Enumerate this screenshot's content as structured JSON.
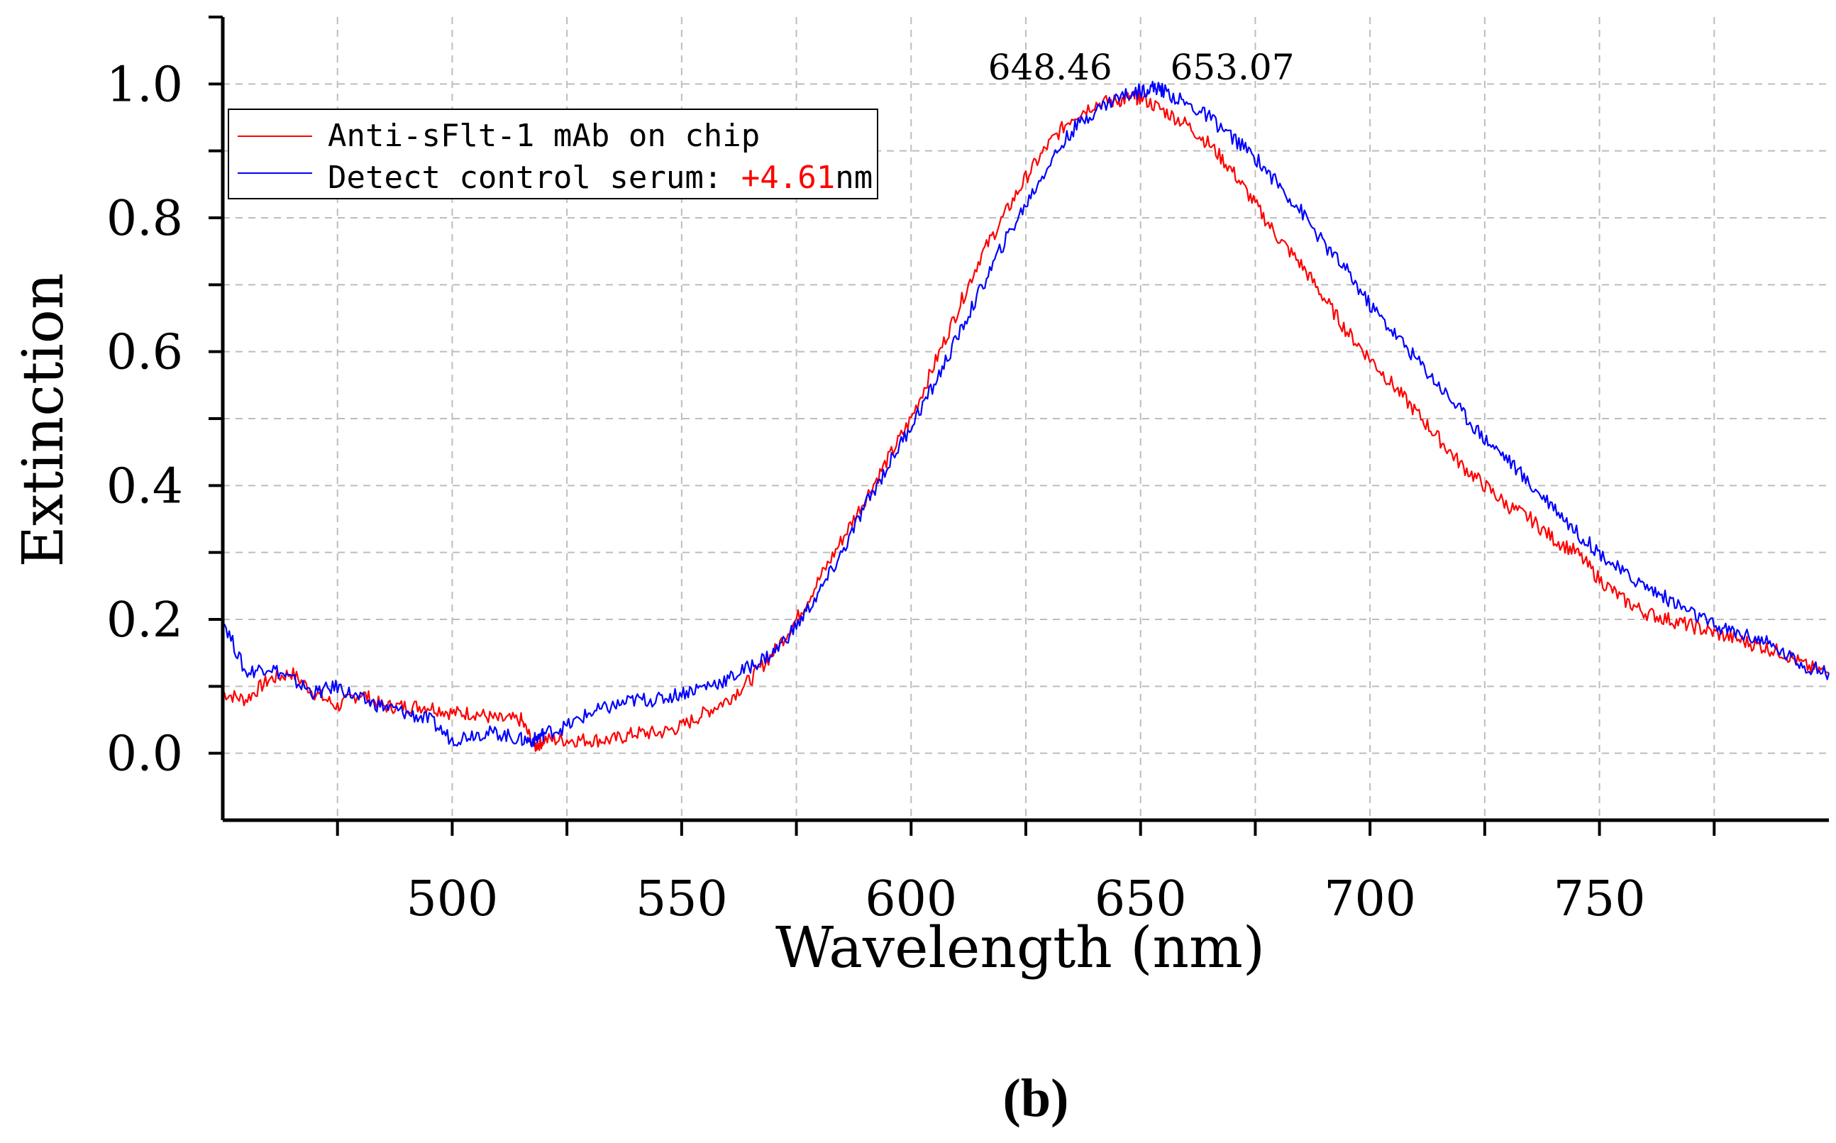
{
  "chart_data": {
    "type": "line",
    "title": "",
    "xlabel": "Wavelength (nm)",
    "ylabel": "Extinction",
    "xlim": [
      450,
      800
    ],
    "ylim": [
      -0.1,
      1.1
    ],
    "xticks": [
      500,
      550,
      600,
      650,
      700,
      750
    ],
    "xtick_labels": [
      "500",
      "550",
      "600",
      "650",
      "700",
      "750"
    ],
    "yticks": [
      0.0,
      0.2,
      0.4,
      0.6,
      0.8,
      1.0
    ],
    "ytick_labels": [
      "0.0",
      "0.2",
      "0.4",
      "0.6",
      "0.8",
      "1.0"
    ],
    "grid": true,
    "legend_position": "top-left",
    "series": [
      {
        "name": "Anti-sFlt-1 mAb on chip",
        "color": "#ff0000",
        "x": [
          450,
          455,
          460,
          465,
          470,
          475,
          480,
          485,
          490,
          495,
          500,
          505,
          510,
          515,
          518,
          520,
          525,
          530,
          535,
          540,
          545,
          550,
          555,
          560,
          565,
          570,
          575,
          580,
          585,
          590,
          595,
          600,
          605,
          610,
          615,
          620,
          625,
          630,
          635,
          640,
          645,
          648.46,
          650,
          655,
          660,
          665,
          670,
          675,
          680,
          685,
          690,
          695,
          700,
          705,
          710,
          715,
          720,
          725,
          730,
          735,
          740,
          745,
          750,
          755,
          760,
          765,
          770,
          775,
          780,
          785,
          790,
          795,
          800
        ],
        "y": [
          0.09,
          0.08,
          0.11,
          0.12,
          0.09,
          0.07,
          0.09,
          0.07,
          0.07,
          0.07,
          0.06,
          0.06,
          0.05,
          0.05,
          0.01,
          0.02,
          0.02,
          0.02,
          0.02,
          0.03,
          0.03,
          0.04,
          0.06,
          0.08,
          0.11,
          0.15,
          0.2,
          0.26,
          0.32,
          0.38,
          0.44,
          0.5,
          0.58,
          0.66,
          0.74,
          0.8,
          0.86,
          0.91,
          0.95,
          0.97,
          0.975,
          0.98,
          0.98,
          0.96,
          0.94,
          0.91,
          0.87,
          0.82,
          0.77,
          0.73,
          0.68,
          0.63,
          0.59,
          0.55,
          0.51,
          0.47,
          0.43,
          0.4,
          0.37,
          0.35,
          0.32,
          0.3,
          0.26,
          0.23,
          0.21,
          0.2,
          0.19,
          0.18,
          0.17,
          0.16,
          0.15,
          0.13,
          0.12
        ]
      },
      {
        "name": "Detect control serum: ",
        "shift_label": "+4.61",
        "shift_unit": "nm",
        "shift_color": "#ff0000",
        "color": "#0000ff",
        "x": [
          450,
          455,
          460,
          465,
          470,
          475,
          480,
          485,
          490,
          495,
          500,
          505,
          510,
          515,
          518,
          520,
          525,
          530,
          535,
          540,
          545,
          550,
          555,
          560,
          565,
          570,
          575,
          580,
          585,
          590,
          595,
          600,
          605,
          610,
          615,
          620,
          625,
          630,
          635,
          640,
          645,
          650,
          653.07,
          655,
          660,
          665,
          670,
          675,
          680,
          685,
          690,
          695,
          700,
          705,
          710,
          715,
          720,
          725,
          730,
          735,
          740,
          745,
          750,
          755,
          760,
          765,
          770,
          775,
          780,
          785,
          790,
          795,
          800
        ],
        "y": [
          0.2,
          0.12,
          0.13,
          0.11,
          0.09,
          0.1,
          0.08,
          0.07,
          0.06,
          0.05,
          0.02,
          0.03,
          0.03,
          0.02,
          0.02,
          0.03,
          0.04,
          0.06,
          0.07,
          0.08,
          0.08,
          0.09,
          0.1,
          0.11,
          0.13,
          0.15,
          0.19,
          0.24,
          0.3,
          0.37,
          0.43,
          0.49,
          0.55,
          0.62,
          0.69,
          0.76,
          0.82,
          0.88,
          0.93,
          0.96,
          0.98,
          0.99,
          0.995,
          0.99,
          0.97,
          0.95,
          0.92,
          0.89,
          0.85,
          0.81,
          0.76,
          0.72,
          0.67,
          0.63,
          0.59,
          0.55,
          0.51,
          0.47,
          0.44,
          0.4,
          0.37,
          0.33,
          0.3,
          0.27,
          0.25,
          0.23,
          0.21,
          0.19,
          0.18,
          0.17,
          0.15,
          0.13,
          0.12
        ]
      }
    ],
    "annotations": [
      {
        "text": "648.46",
        "x": 648.46,
        "anchor": "end"
      },
      {
        "text": "653.07",
        "x": 653.07,
        "anchor": "start"
      }
    ],
    "panel_label": "(b)"
  }
}
